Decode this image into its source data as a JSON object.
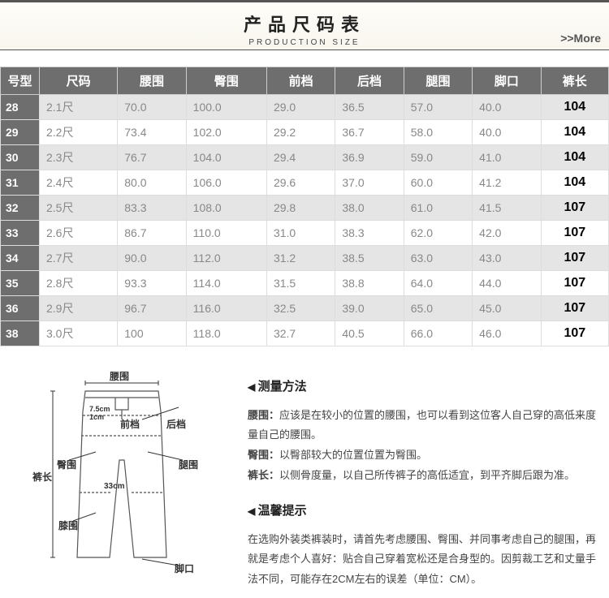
{
  "header": {
    "title_cn": "产品尺码表",
    "title_en": "PRODUCTION  SIZE",
    "more": ">>More"
  },
  "table": {
    "columns": [
      "号型",
      "尺码",
      "腰围",
      "臀围",
      "前档",
      "后档",
      "腿围",
      "脚口",
      "裤长"
    ],
    "rows": [
      [
        "28",
        "2.1尺",
        "70.0",
        "100.0",
        "29.0",
        "36.5",
        "57.0",
        "40.0",
        "104"
      ],
      [
        "29",
        "2.2尺",
        "73.4",
        "102.0",
        "29.2",
        "36.7",
        "58.0",
        "40.0",
        "104"
      ],
      [
        "30",
        "2.3尺",
        "76.7",
        "104.0",
        "29.4",
        "36.9",
        "59.0",
        "41.0",
        "104"
      ],
      [
        "31",
        "2.4尺",
        "80.0",
        "106.0",
        "29.6",
        "37.0",
        "60.0",
        "41.2",
        "104"
      ],
      [
        "32",
        "2.5尺",
        "83.3",
        "108.0",
        "29.8",
        "38.0",
        "61.0",
        "41.5",
        "107"
      ],
      [
        "33",
        "2.6尺",
        "86.7",
        "110.0",
        "31.0",
        "38.3",
        "62.0",
        "42.0",
        "107"
      ],
      [
        "34",
        "2.7尺",
        "90.0",
        "112.0",
        "31.2",
        "38.5",
        "63.0",
        "43.0",
        "107"
      ],
      [
        "35",
        "2.8尺",
        "93.3",
        "114.0",
        "31.5",
        "38.8",
        "64.0",
        "44.0",
        "107"
      ],
      [
        "36",
        "2.9尺",
        "96.7",
        "116.0",
        "32.5",
        "39.0",
        "65.0",
        "45.0",
        "107"
      ],
      [
        "38",
        "3.0尺",
        "100",
        "118.0",
        "32.7",
        "40.5",
        "66.0",
        "46.0",
        "107"
      ]
    ]
  },
  "diagram": {
    "labels": {
      "yaowei": "腰围",
      "qiandang": "前档",
      "houdang": "后档",
      "tunwei": "臀围",
      "tuiwei": "腿围",
      "kuchang": "裤长",
      "xiwei": "膝围",
      "jiaokou": "脚口",
      "n33": "33cm",
      "n75": "7.5cm",
      "n1": "1cm"
    }
  },
  "measure": {
    "title": "测量方法",
    "yw_l": "腰围：",
    "yw_t": "应该是在较小的位置的腰围，也可以看到这位客人自己穿的高低来度量自己的腰围。",
    "tw_l": "臀围：",
    "tw_t": "以臀部较大的位置位置为臀围。",
    "kc_l": "裤长：",
    "kc_t": "以侧骨度量，以自己所传裤子的高低适宜，到平齐脚后跟为准。"
  },
  "tip": {
    "title": "温馨提示",
    "text": "在选购外装类裤装时，请首先考虑腰围、臀围、并同事考虑自己的腿围，再就是考虑个人喜好：贴合自己穿着宽松还是合身型的。因剪裁工艺和丈量手法不同，可能存在2CM左右的误差（单位：CM）。"
  }
}
